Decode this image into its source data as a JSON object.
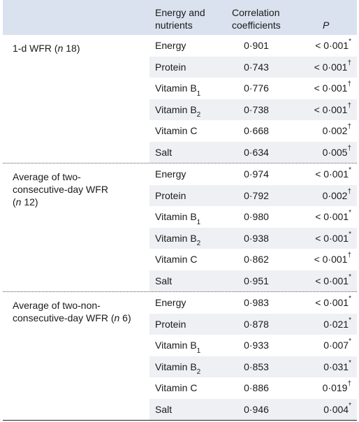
{
  "header": {
    "col_nutrients": "Energy and nutrients",
    "col_nutrients_line1": "Energy and",
    "col_nutrients_line2": "nutrients",
    "col_corr_line1": "Correlation",
    "col_corr_line2": "coefficients",
    "col_p": "P"
  },
  "groups": [
    {
      "label_html": "1-d WFR (<i>n</i> 18)",
      "rows": [
        {
          "nutrient": "Energy",
          "sub": "",
          "coef": "0·901",
          "p": "< 0·001",
          "mark": "*"
        },
        {
          "nutrient": "Protein",
          "sub": "",
          "coef": "0·743",
          "p": "< 0·001",
          "mark": "†"
        },
        {
          "nutrient": "Vitamin B",
          "sub": "1",
          "coef": "0·776",
          "p": "< 0·001",
          "mark": "†"
        },
        {
          "nutrient": "Vitamin B",
          "sub": "2",
          "coef": "0·738",
          "p": "< 0·001",
          "mark": "†"
        },
        {
          "nutrient": "Vitamin C",
          "sub": "",
          "coef": "0·668",
          "p": "0·002",
          "mark": "†"
        },
        {
          "nutrient": "Salt",
          "sub": "",
          "coef": "0·634",
          "p": "0·005",
          "mark": "†"
        }
      ]
    },
    {
      "label_html": "Average of two-<br>consecutive-day WFR<br>(<i>n</i> 12)",
      "rows": [
        {
          "nutrient": "Energy",
          "sub": "",
          "coef": "0·974",
          "p": "< 0·001",
          "mark": "*"
        },
        {
          "nutrient": "Protein",
          "sub": "",
          "coef": "0·792",
          "p": "0·002",
          "mark": "†"
        },
        {
          "nutrient": "Vitamin B",
          "sub": "1",
          "coef": "0·980",
          "p": "< 0·001",
          "mark": "*"
        },
        {
          "nutrient": "Vitamin B",
          "sub": "2",
          "coef": "0·938",
          "p": "< 0·001",
          "mark": "*"
        },
        {
          "nutrient": "Vitamin C",
          "sub": "",
          "coef": "0·862",
          "p": "< 0·001",
          "mark": "†"
        },
        {
          "nutrient": "Salt",
          "sub": "",
          "coef": "0·951",
          "p": "< 0·001",
          "mark": "*"
        }
      ]
    },
    {
      "label_html": "Average of two-non-<br>consecutive-day WFR (<i>n</i> 6)",
      "rows": [
        {
          "nutrient": "Energy",
          "sub": "",
          "coef": "0·983",
          "p": "< 0·001",
          "mark": "*"
        },
        {
          "nutrient": "Protein",
          "sub": "",
          "coef": "0·878",
          "p": "0·021",
          "mark": "*"
        },
        {
          "nutrient": "Vitamin B",
          "sub": "1",
          "coef": "0·933",
          "p": "0·007",
          "mark": "*"
        },
        {
          "nutrient": "Vitamin B",
          "sub": "2",
          "coef": "0·853",
          "p": "0·031",
          "mark": "*"
        },
        {
          "nutrient": "Vitamin C",
          "sub": "",
          "coef": "0·886",
          "p": "0·019",
          "mark": "†"
        },
        {
          "nutrient": "Salt",
          "sub": "",
          "coef": "0·946",
          "p": "0·004",
          "mark": "*"
        }
      ]
    }
  ]
}
